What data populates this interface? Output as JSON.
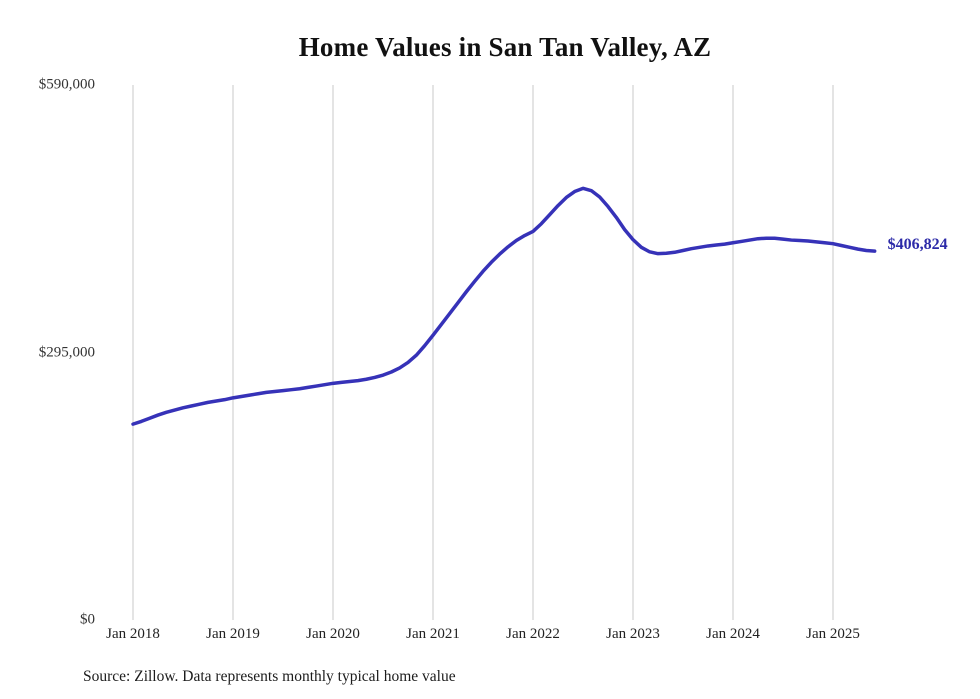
{
  "chart_data": {
    "type": "line",
    "title": "Home Values in San Tan Valley, AZ",
    "source": "Source: Zillow. Data represents monthly typical home value",
    "series_name": "Monthly typical home value",
    "start_month": "2018-01",
    "end_month": "2025-06",
    "line_color": "#3632b8",
    "grid": "vertical-only",
    "ylim": [
      0,
      590000
    ],
    "x_ticks": [
      "Jan 2018",
      "Jan 2019",
      "Jan 2020",
      "Jan 2021",
      "Jan 2022",
      "Jan 2023",
      "Jan 2024",
      "Jan 2025"
    ],
    "y_ticks": [
      {
        "label": "$590,000",
        "value": 590000
      },
      {
        "label": "$295,000",
        "value": 295000
      },
      {
        "label": "$0",
        "value": 0
      }
    ],
    "end_label": "$406,824",
    "end_value": 406824,
    "values": [
      216000,
      219000,
      222500,
      226000,
      229000,
      231500,
      234000,
      236000,
      238000,
      240000,
      241500,
      243000,
      245000,
      246500,
      248000,
      249500,
      251000,
      252000,
      253000,
      254000,
      255000,
      256500,
      258000,
      259500,
      261000,
      262000,
      263000,
      264000,
      265500,
      267500,
      270000,
      273500,
      278000,
      284000,
      292000,
      302500,
      314000,
      326000,
      338000,
      350000,
      362000,
      373500,
      384500,
      394500,
      403500,
      411500,
      418500,
      424000,
      428500,
      437000,
      447000,
      457000,
      466000,
      472500,
      476000,
      473500,
      466500,
      456000,
      444000,
      430500,
      419500,
      411000,
      406000,
      404000,
      404500,
      405500,
      407500,
      409500,
      411000,
      412500,
      413500,
      414500,
      416000,
      417500,
      419000,
      420500,
      421000,
      421000,
      420000,
      419000,
      418500,
      418000,
      417000,
      416000,
      415000,
      413000,
      411000,
      409000,
      407500,
      406824
    ]
  }
}
